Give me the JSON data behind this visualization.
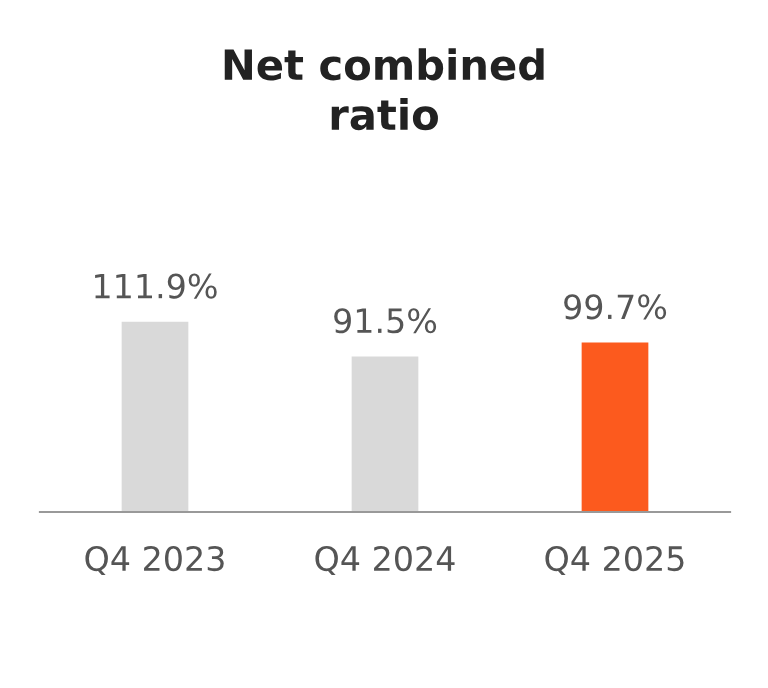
{
  "chart_data": {
    "type": "bar",
    "title": "Net combined\nratio",
    "categories": [
      "Q4 2023",
      "Q4 2024",
      "Q4 2025"
    ],
    "values": [
      111.9,
      91.5,
      99.7
    ],
    "colors": [
      "#d9d9d9",
      "#d9d9d9",
      "#fc5a1e"
    ],
    "value_labels": [
      "111.9%",
      "91.5%",
      "99.7%"
    ],
    "grid": false,
    "legend": false
  }
}
